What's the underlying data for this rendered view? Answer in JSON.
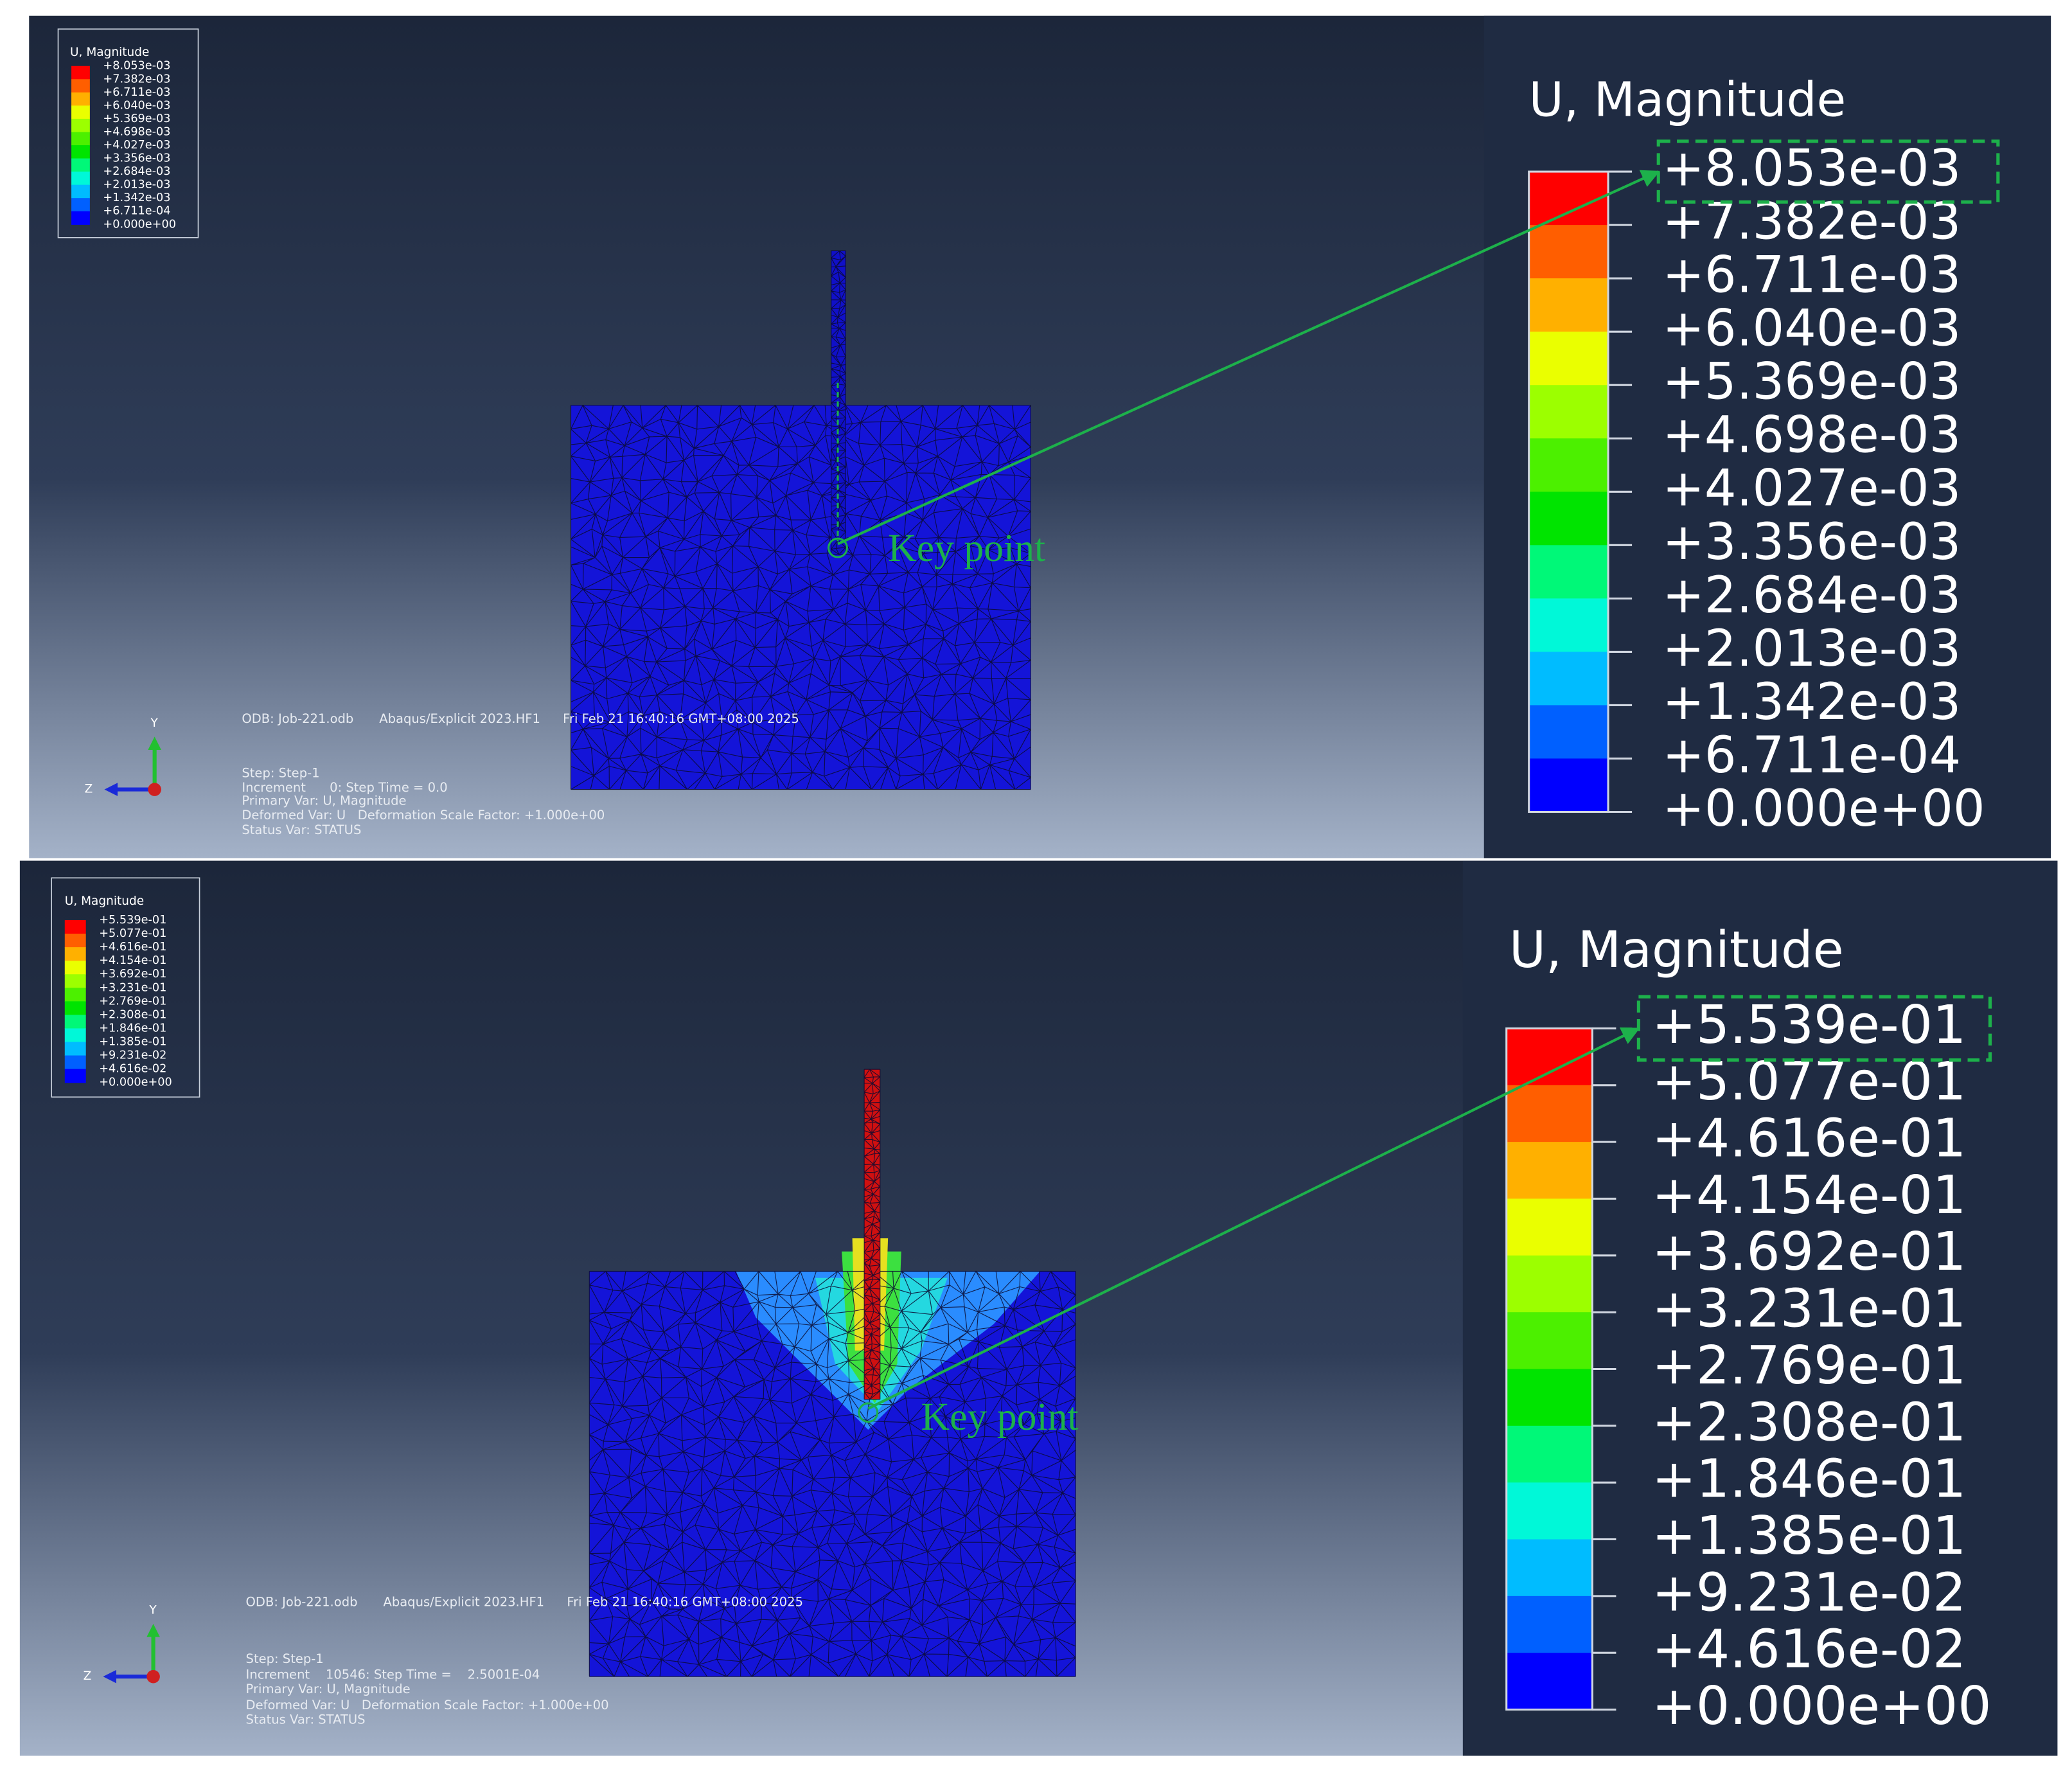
{
  "panels": [
    {
      "legend": {
        "title": "U, Magnitude",
        "labels": [
          "+8.053e-03",
          "+7.382e-03",
          "+6.711e-03",
          "+6.040e-03",
          "+5.369e-03",
          "+4.698e-03",
          "+4.027e-03",
          "+3.356e-03",
          "+2.684e-03",
          "+2.013e-03",
          "+1.342e-03",
          "+6.711e-04",
          "+0.000e+00"
        ]
      },
      "info": {
        "odb": "ODB: Job-221.odb",
        "solver": "Abaqus/Explicit 2023.HF1",
        "date": "Fri Feb 21 16:40:16 GMT+08:00 2025",
        "lines": [
          "Step: Step-1",
          "Increment      0: Step Time = 0.0",
          "Primary Var: U, Magnitude",
          "Deformed Var: U   Deformation Scale Factor: +1.000e+00",
          "Status Var: STATUS"
        ]
      },
      "triad": {
        "y": "Y",
        "z": "Z"
      },
      "annotation": "Key point"
    },
    {
      "legend": {
        "title": "U, Magnitude",
        "labels": [
          "+5.539e-01",
          "+5.077e-01",
          "+4.616e-01",
          "+4.154e-01",
          "+3.692e-01",
          "+3.231e-01",
          "+2.769e-01",
          "+2.308e-01",
          "+1.846e-01",
          "+1.385e-01",
          "+9.231e-02",
          "+4.616e-02",
          "+0.000e+00"
        ]
      },
      "info": {
        "odb": "ODB: Job-221.odb",
        "solver": "Abaqus/Explicit 2023.HF1",
        "date": "Fri Feb 21 16:40:16 GMT+08:00 2025",
        "lines": [
          "Step: Step-1",
          "Increment    10546: Step Time =    2.5001E-04",
          "Primary Var: U, Magnitude",
          "Deformed Var: U   Deformation Scale Factor: +1.000e+00",
          "Status Var: STATUS"
        ]
      },
      "triad": {
        "y": "Y",
        "z": "Z"
      },
      "annotation": "Key point"
    }
  ]
}
